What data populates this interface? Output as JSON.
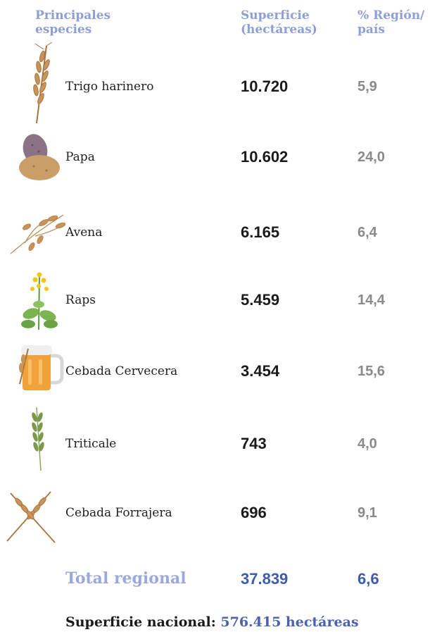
{
  "header": {
    "columns": [
      "Principales especies",
      "Superficie (hectáreas)",
      "% Región/ país"
    ]
  },
  "table": {
    "rows": [
      [
        "Trigo harinero",
        "10.720",
        "5,9"
      ],
      [
        "Papa",
        "10.602",
        "24,0"
      ],
      [
        "Avena",
        "6.165",
        "6,4"
      ],
      [
        "Raps",
        "5.459",
        "14,4"
      ],
      [
        "Cebada Cervecera",
        "3.454",
        "15,6"
      ],
      [
        "Triticale",
        "743",
        "4,0"
      ],
      [
        "Cebada Forrajera",
        "696",
        "9,1"
      ]
    ]
  },
  "total": {
    "label": "Total regional",
    "surface": "37.839",
    "percent": "6,6"
  },
  "footer": {
    "label": "Superficie nacional:",
    "value": "576.415 hectáreas"
  }
}
